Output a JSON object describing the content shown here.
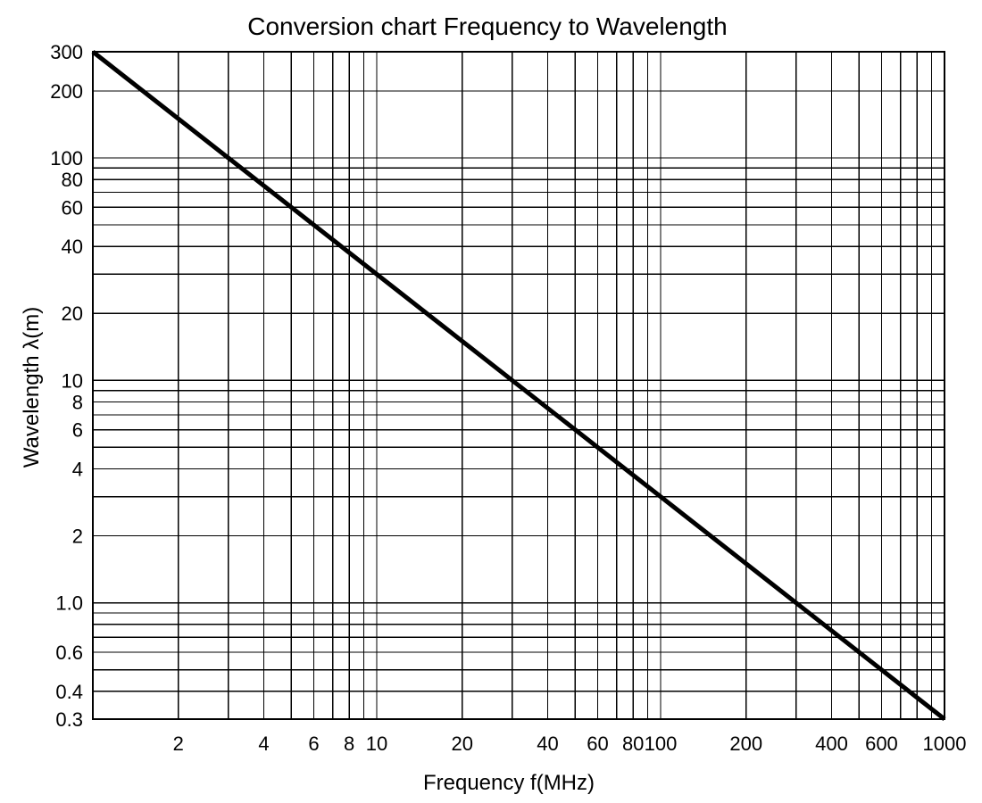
{
  "chart_data": {
    "type": "line",
    "title": "Conversion chart Frequency to Wavelength",
    "xlabel": "Frequency f(MHz)",
    "ylabel": "Wavelength λ(m)",
    "xscale": "log",
    "yscale": "log",
    "xlim": [
      1,
      1000
    ],
    "ylim": [
      0.3,
      300
    ],
    "grid": true,
    "x_ticks": [
      {
        "value": 2,
        "label": "2"
      },
      {
        "value": 4,
        "label": "4"
      },
      {
        "value": 6,
        "label": "6"
      },
      {
        "value": 8,
        "label": "8"
      },
      {
        "value": 10,
        "label": "10"
      },
      {
        "value": 20,
        "label": "20"
      },
      {
        "value": 40,
        "label": "40"
      },
      {
        "value": 60,
        "label": "60"
      },
      {
        "value": 80,
        "label": "80"
      },
      {
        "value": 100,
        "label": "100"
      },
      {
        "value": 200,
        "label": "200"
      },
      {
        "value": 400,
        "label": "400"
      },
      {
        "value": 600,
        "label": "600"
      },
      {
        "value": 1000,
        "label": "1000"
      }
    ],
    "y_ticks": [
      {
        "value": 0.3,
        "label": "0.3"
      },
      {
        "value": 0.4,
        "label": "0.4"
      },
      {
        "value": 0.6,
        "label": "0.6"
      },
      {
        "value": 1.0,
        "label": "1.0"
      },
      {
        "value": 2,
        "label": "2"
      },
      {
        "value": 4,
        "label": "4"
      },
      {
        "value": 6,
        "label": "6"
      },
      {
        "value": 8,
        "label": "8"
      },
      {
        "value": 10,
        "label": "10"
      },
      {
        "value": 20,
        "label": "20"
      },
      {
        "value": 40,
        "label": "40"
      },
      {
        "value": 60,
        "label": "60"
      },
      {
        "value": 80,
        "label": "80"
      },
      {
        "value": 100,
        "label": "100"
      },
      {
        "value": 200,
        "label": "200"
      },
      {
        "value": 300,
        "label": "300"
      }
    ],
    "x_grid": [
      2,
      3,
      4,
      5,
      6,
      7,
      8,
      9,
      10,
      20,
      30,
      40,
      50,
      60,
      70,
      80,
      90,
      100,
      200,
      300,
      400,
      500,
      600,
      700,
      800,
      900,
      1000
    ],
    "y_grid": [
      0.3,
      0.4,
      0.5,
      0.6,
      0.7,
      0.8,
      0.9,
      1,
      2,
      3,
      4,
      5,
      6,
      7,
      8,
      9,
      10,
      20,
      30,
      40,
      50,
      60,
      70,
      80,
      90,
      100,
      200,
      300
    ],
    "series": [
      {
        "x": [
          1,
          1000
        ],
        "values": [
          300,
          0.3
        ]
      }
    ],
    "colors": {
      "line": "#000000",
      "grid": "#000000",
      "background": "#ffffff"
    }
  }
}
